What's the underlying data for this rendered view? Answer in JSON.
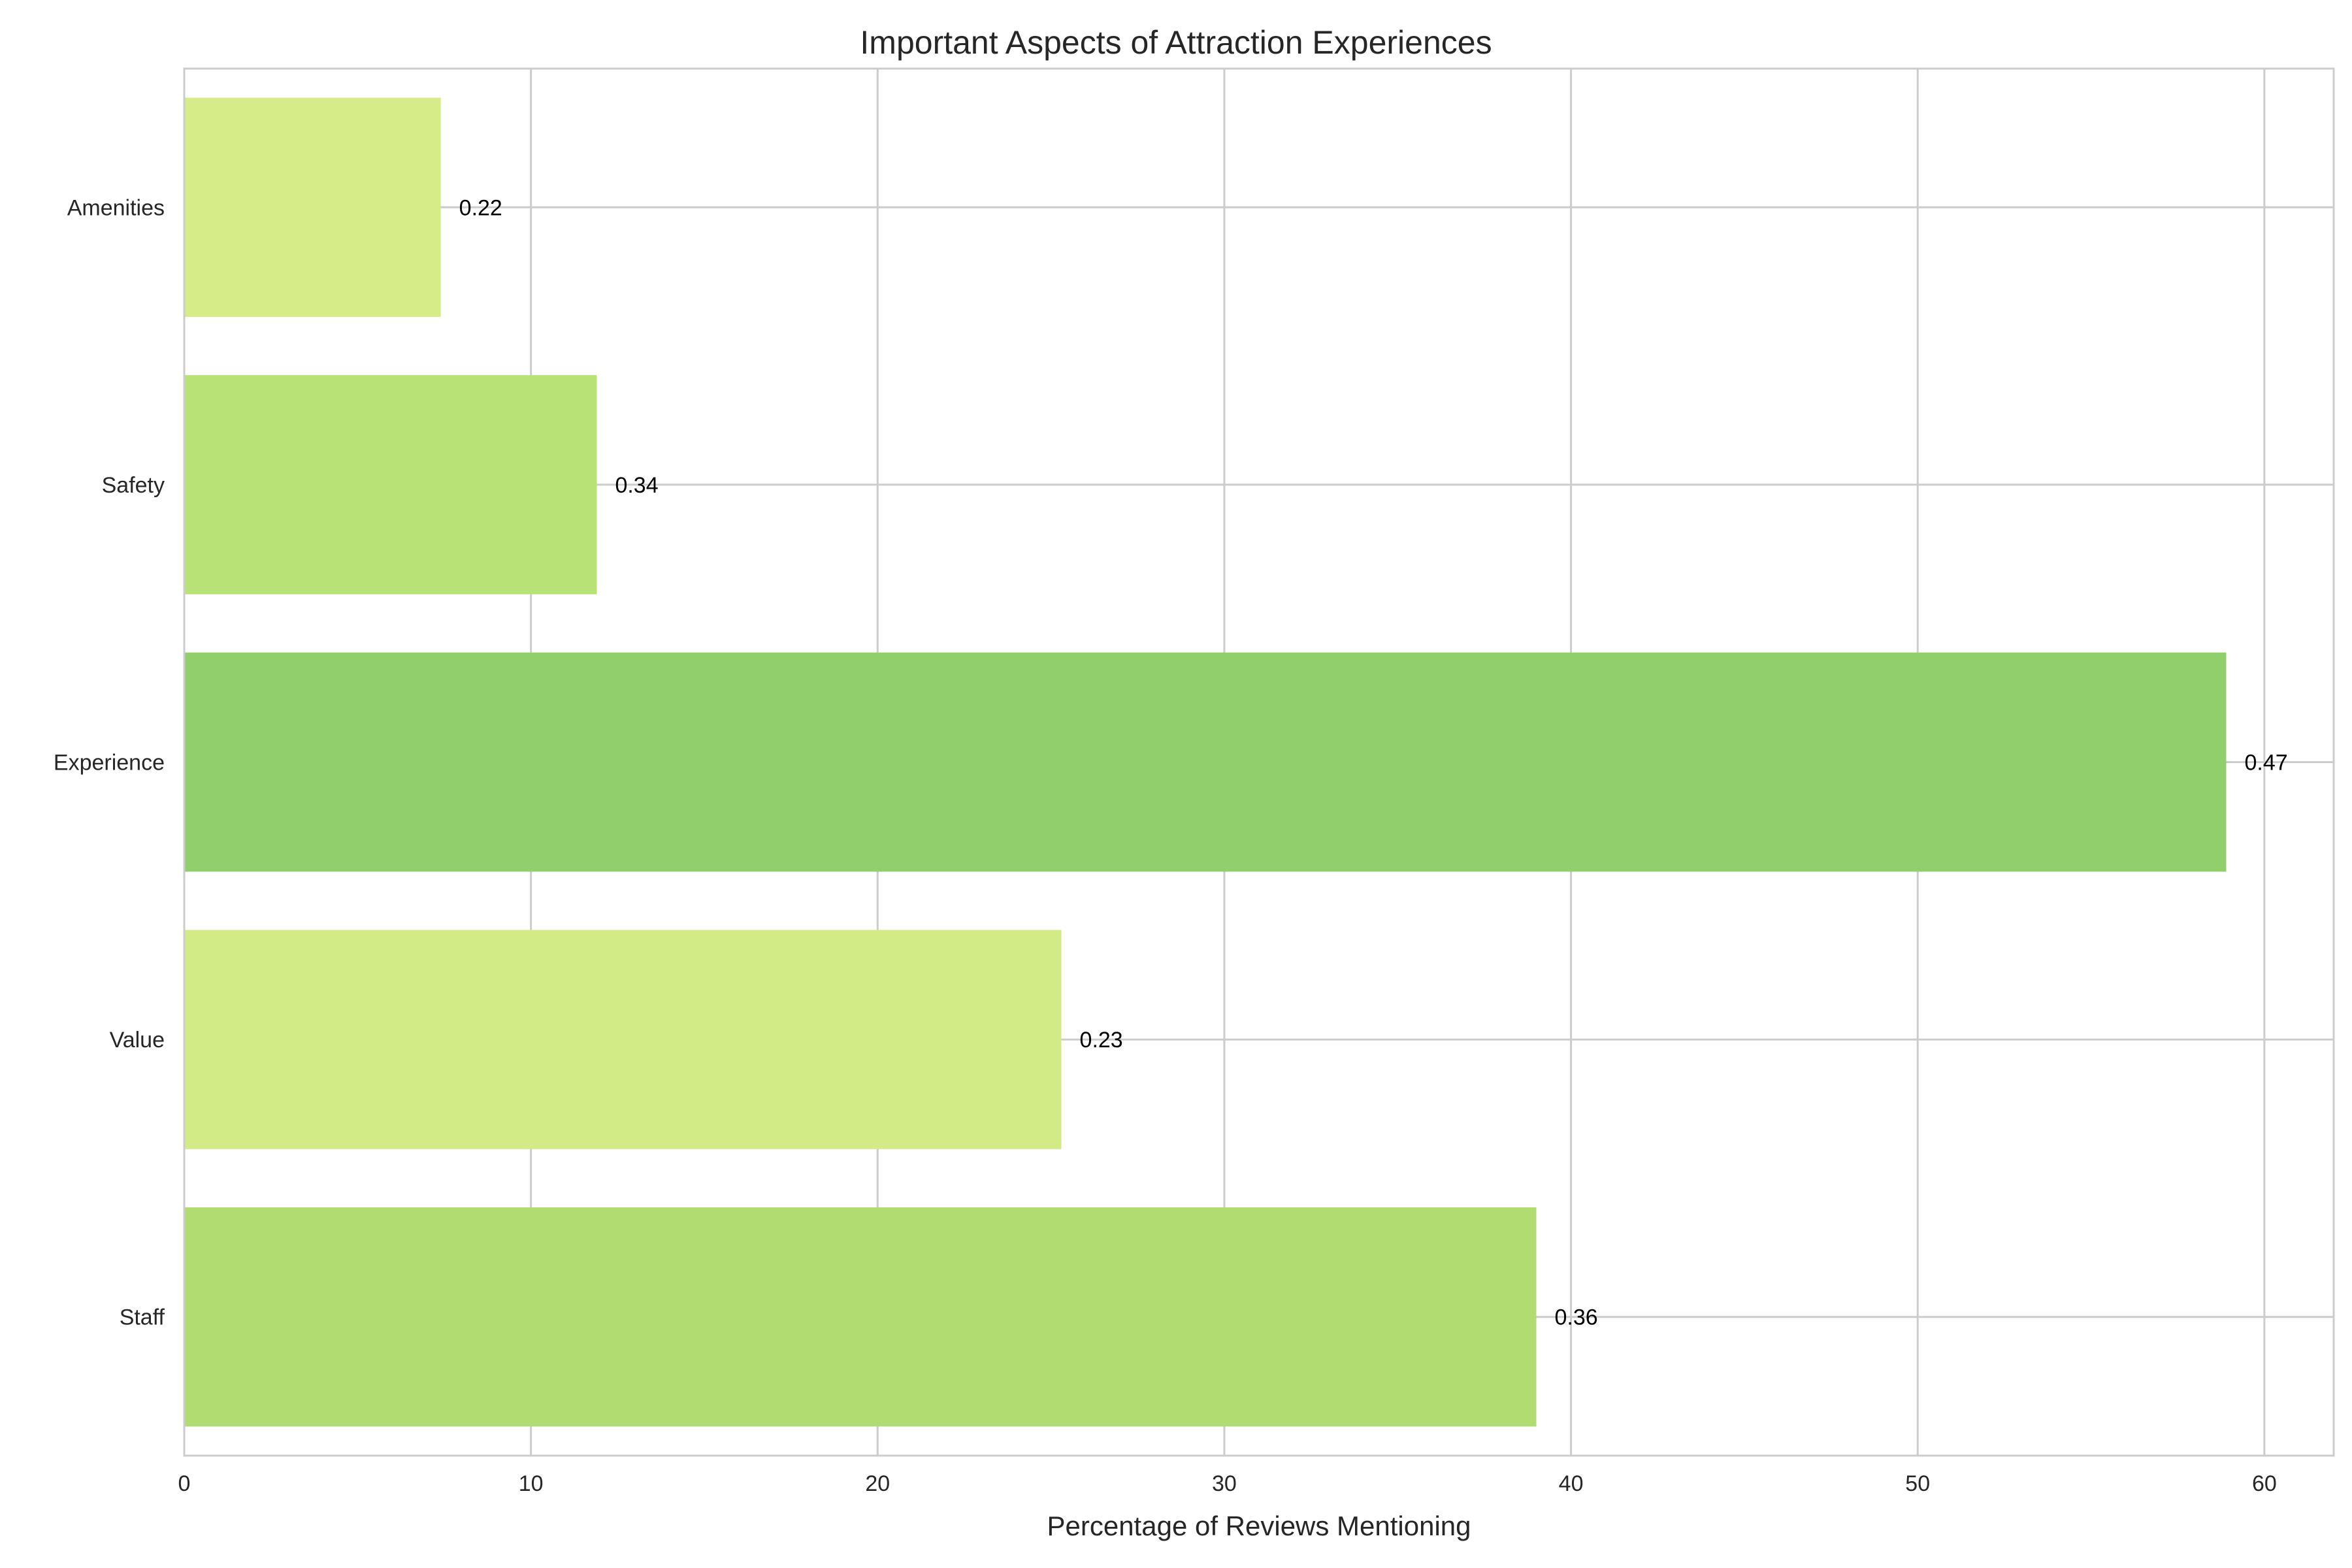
{
  "chart_data": {
    "type": "bar",
    "orientation": "horizontal",
    "title": "Important Aspects of Attraction Experiences",
    "xlabel": "Percentage of Reviews Mentioning",
    "ylabel": "",
    "categories": [
      "Staff",
      "Value",
      "Experience",
      "Safety",
      "Amenities"
    ],
    "values": [
      39,
      25.3,
      58.9,
      11.9,
      7.4
    ],
    "data_labels": [
      "0.36",
      "0.23",
      "0.47",
      "0.34",
      "0.22"
    ],
    "bar_colors": [
      "#b1dc71",
      "#d3eb87",
      "#91cf6c",
      "#b9e276",
      "#d5ec88"
    ],
    "xlim": [
      0,
      62
    ],
    "xticks": [
      0,
      10,
      20,
      30,
      40,
      50,
      60
    ],
    "grid": true,
    "legend": "none"
  },
  "colors": {
    "grid": "#cccccc",
    "text": "#262626",
    "background": "#ffffff"
  }
}
